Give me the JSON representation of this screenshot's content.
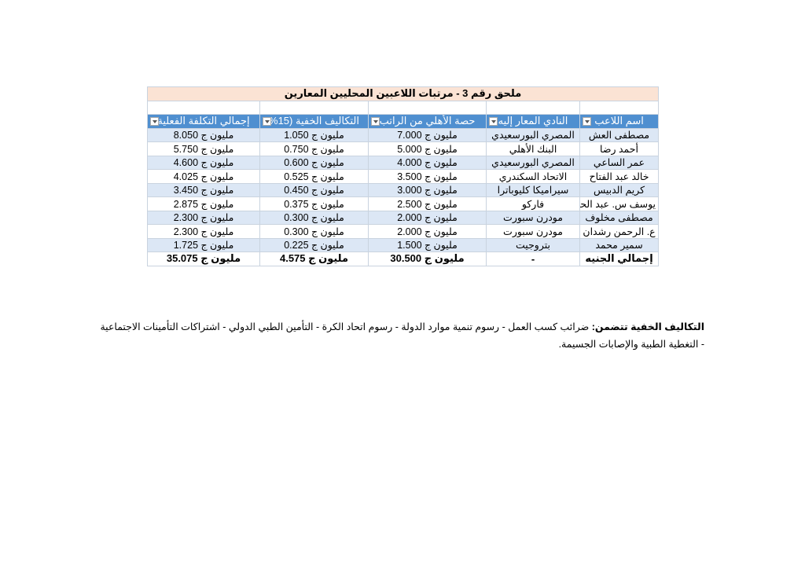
{
  "table": {
    "title": "ملحق رقم 3 - مرتبات اللاعبين المحليين المعارين",
    "headers": [
      "اسم اللاعب",
      "النادي المعار إليه",
      "حصة الأهلي من الراتب",
      "التكاليف الخفية (15%",
      "إجمالي التكلفة الفعلية"
    ],
    "rows": [
      [
        "مصطفى العش",
        "المصري البورسعيدي",
        "مليون ج 7.000",
        "مليون ج 1.050",
        "مليون ج 8.050"
      ],
      [
        "أحمد رضا",
        "البنك الأهلي",
        "مليون ج 5.000",
        "مليون ج 0.750",
        "مليون ج 5.750"
      ],
      [
        "عمر الساعي",
        "المصري البورسعيدي",
        "مليون ج 4.000",
        "مليون ج 0.600",
        "مليون ج 4.600"
      ],
      [
        "خالد عبد الفتاح",
        "الاتحاد السكندري",
        "مليون ج 3.500",
        "مليون ج 0.525",
        "مليون ج 4.025"
      ],
      [
        "كريم الدبيس",
        "سيراميكا كليوباترا",
        "مليون ج 3.000",
        "مليون ج 0.450",
        "مليون ج 3.450"
      ],
      [
        "يوسف س. عبد الحفيظ",
        "فاركو",
        "مليون ج 2.500",
        "مليون ج 0.375",
        "مليون ج 2.875"
      ],
      [
        "مصطفى مخلوف",
        "مودرن سبورت",
        "مليون ج 2.000",
        "مليون ج 0.300",
        "مليون ج 2.300"
      ],
      [
        "ع. الرحمن رشدان",
        "مودرن سبورت",
        "مليون ج 2.000",
        "مليون ج 0.300",
        "مليون ج 2.300"
      ],
      [
        "سمير محمد",
        "بتروجيت",
        "مليون ج 1.500",
        "مليون ج 0.225",
        "مليون ج 1.725"
      ]
    ],
    "total": [
      "إجمالي الجنيه",
      "-",
      "مليون ج 30.500",
      "مليون ج 4.575",
      "مليون ج 35.075"
    ]
  },
  "note": {
    "label": "التكاليف الخفية تتضمن:",
    "text": " ضرائب كسب العمل - رسوم تنمية موارد الدولة  - رسوم اتحاد الكرة -  التأمين الطبي الدولي - اشتراكات التأمينات الاجتماعية - التغطية الطبية والإصابات الجسيمة."
  },
  "colors": {
    "header": "#4f8fd0",
    "title_bg": "#fbe3d4",
    "row_alt": "#dce7f5"
  }
}
